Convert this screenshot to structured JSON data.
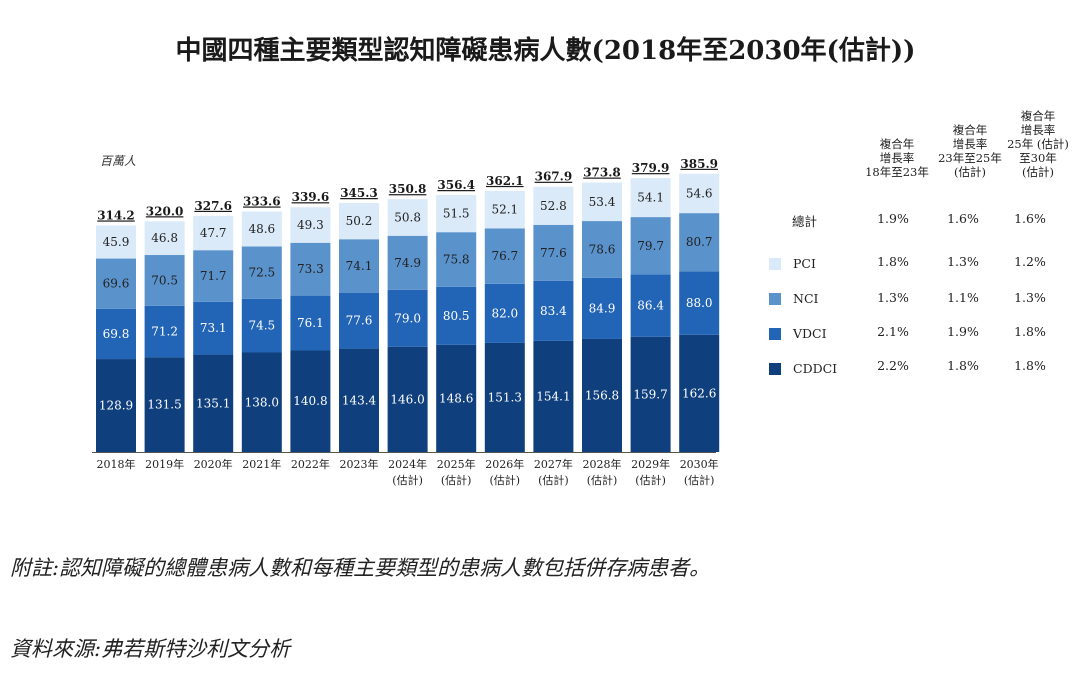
{
  "title": "中國四種主要類型認知障礙患病人數(2018年至2030年(估計))",
  "unit_label": "百萬人",
  "colors": {
    "CDDCI": "#0f3f7c",
    "VDCI": "#2264b5",
    "NCI": "#5a92cc",
    "PCI": "#daeaf8"
  },
  "chart_data": {
    "type": "bar",
    "stacked": true,
    "title": "中國四種主要類型認知障礙患病人數(2018年至2030年(估計))",
    "ylabel": "百萬人",
    "categories": [
      [
        "2018年",
        ""
      ],
      [
        "2019年",
        ""
      ],
      [
        "2020年",
        ""
      ],
      [
        "2021年",
        ""
      ],
      [
        "2022年",
        ""
      ],
      [
        "2023年",
        ""
      ],
      [
        "2024年",
        "(估計)"
      ],
      [
        "2025年",
        "(估計)"
      ],
      [
        "2026年",
        "(估計)"
      ],
      [
        "2027年",
        "(估計)"
      ],
      [
        "2028年",
        "(估計)"
      ],
      [
        "2029年",
        "(估計)"
      ],
      [
        "2030年",
        "(估計)"
      ]
    ],
    "series": [
      {
        "name": "CDDCI",
        "values": [
          128.9,
          131.5,
          135.1,
          138.0,
          140.8,
          143.4,
          146.0,
          148.6,
          151.3,
          154.1,
          156.8,
          159.7,
          162.6
        ]
      },
      {
        "name": "VDCI",
        "values": [
          69.8,
          71.2,
          73.1,
          74.5,
          76.1,
          77.6,
          79.0,
          80.5,
          82.0,
          83.4,
          84.9,
          86.4,
          88.0
        ]
      },
      {
        "name": "NCI",
        "values": [
          69.6,
          70.5,
          71.7,
          72.5,
          73.3,
          74.1,
          74.9,
          75.8,
          76.7,
          77.6,
          78.6,
          79.7,
          80.7
        ]
      },
      {
        "name": "PCI",
        "values": [
          45.9,
          46.8,
          47.7,
          48.6,
          49.3,
          50.2,
          50.8,
          51.5,
          52.1,
          52.8,
          53.4,
          54.1,
          54.6
        ]
      }
    ],
    "totals": [
      314.2,
      320.0,
      327.6,
      333.6,
      339.6,
      345.3,
      350.8,
      356.4,
      362.1,
      367.9,
      373.8,
      379.9,
      385.9
    ],
    "ylim": [
      0,
      400
    ],
    "grid": false
  },
  "cagr_table": {
    "headers": [
      [
        "複合年",
        "增長率",
        "18年至23年"
      ],
      [
        "複合年",
        "增長率",
        "23年至25年",
        "(估計)"
      ],
      [
        "複合年",
        "增長率",
        "25年 (估計)",
        "至30年",
        "(估計)"
      ]
    ],
    "rows": [
      {
        "label": "總計",
        "values": [
          "1.9%",
          "1.6%",
          "1.6%"
        ]
      },
      {
        "label": "PCI",
        "values": [
          "1.8%",
          "1.3%",
          "1.2%"
        ]
      },
      {
        "label": "NCI",
        "values": [
          "1.3%",
          "1.1%",
          "1.3%"
        ]
      },
      {
        "label": "VDCI",
        "values": [
          "2.1%",
          "1.9%",
          "1.8%"
        ]
      },
      {
        "label": "CDDCI",
        "values": [
          "2.2%",
          "1.8%",
          "1.8%"
        ]
      }
    ]
  },
  "notes": {
    "footnote": "附註:認知障礙的總體患病人數和每種主要類型的患病人數包括併存病患者。",
    "source": "資料來源:弗若斯特沙利文分析"
  }
}
